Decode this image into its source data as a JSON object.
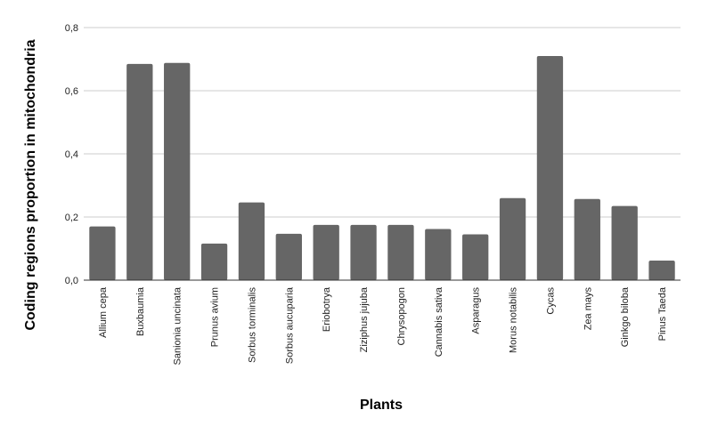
{
  "chart_data": {
    "type": "bar",
    "title": "",
    "xlabel": "Plants",
    "ylabel": "Coding regions proportion in mitochondria",
    "categories": [
      "Allium cepa",
      "Buxbaumia",
      "Sanionia uncinata",
      "Prunus avium",
      "Sorbus torminalis",
      "Sorbus aucuparia",
      "Eriobotrya",
      "Ziziphus jujuba",
      "Chrysopogon",
      "Cannabis sativa",
      "Asparagus",
      "Morus notabilis",
      "Cycas",
      "Zea mays",
      "Ginkgo biloba",
      "Pinus Taeda"
    ],
    "values": [
      0.17,
      0.685,
      0.688,
      0.116,
      0.246,
      0.147,
      0.175,
      0.175,
      0.175,
      0.162,
      0.145,
      0.26,
      0.71,
      0.257,
      0.235,
      0.062
    ],
    "ylim": [
      0,
      0.8
    ],
    "yticks": [
      "0,0",
      "0,2",
      "0,4",
      "0,6",
      "0,8"
    ],
    "grid": true,
    "legend": "none",
    "bar_color": "#666666"
  }
}
